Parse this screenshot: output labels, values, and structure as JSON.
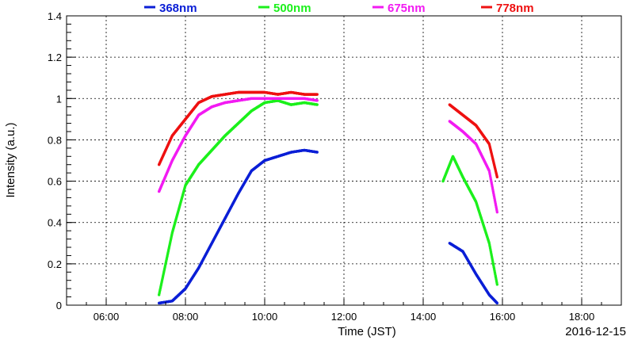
{
  "chart_data": {
    "type": "scatter",
    "title": "",
    "xlabel": "Time (JST)",
    "ylabel": "Intensity (a.u.)",
    "date_label": "2016-12-15",
    "xlim": [
      "05:00",
      "19:00"
    ],
    "ylim": [
      0,
      1.4
    ],
    "x_ticks": [
      "06:00",
      "08:00",
      "10:00",
      "12:00",
      "14:00",
      "16:00",
      "18:00"
    ],
    "y_ticks": [
      "0",
      "0.2",
      "0.4",
      "0.6",
      "0.8",
      "1",
      "1.2",
      "1.4"
    ],
    "grid": true,
    "legend_position": "top",
    "series": [
      {
        "name": "368nm",
        "color": "#0b1fd6",
        "points": [
          [
            "07:20",
            0.01
          ],
          [
            "07:40",
            0.02
          ],
          [
            "08:00",
            0.08
          ],
          [
            "08:20",
            0.18
          ],
          [
            "08:40",
            0.3
          ],
          [
            "09:00",
            0.42
          ],
          [
            "09:20",
            0.54
          ],
          [
            "09:40",
            0.65
          ],
          [
            "10:00",
            0.7
          ],
          [
            "10:20",
            0.72
          ],
          [
            "10:40",
            0.74
          ],
          [
            "11:00",
            0.75
          ],
          [
            "11:20",
            0.74
          ],
          [
            "14:40",
            0.3
          ],
          [
            "15:00",
            0.26
          ],
          [
            "15:20",
            0.15
          ],
          [
            "15:40",
            0.05
          ],
          [
            "15:52",
            0.01
          ]
        ]
      },
      {
        "name": "500nm",
        "color": "#1cf01c",
        "points": [
          [
            "07:20",
            0.05
          ],
          [
            "07:40",
            0.35
          ],
          [
            "08:00",
            0.58
          ],
          [
            "08:20",
            0.68
          ],
          [
            "08:40",
            0.75
          ],
          [
            "09:00",
            0.82
          ],
          [
            "09:20",
            0.88
          ],
          [
            "09:40",
            0.94
          ],
          [
            "10:00",
            0.98
          ],
          [
            "10:20",
            0.99
          ],
          [
            "10:40",
            0.97
          ],
          [
            "11:00",
            0.98
          ],
          [
            "11:20",
            0.97
          ],
          [
            "14:30",
            0.6
          ],
          [
            "14:45",
            0.72
          ],
          [
            "15:00",
            0.62
          ],
          [
            "15:20",
            0.5
          ],
          [
            "15:40",
            0.3
          ],
          [
            "15:52",
            0.1
          ]
        ]
      },
      {
        "name": "675nm",
        "color": "#f21bf2",
        "points": [
          [
            "07:20",
            0.55
          ],
          [
            "07:40",
            0.7
          ],
          [
            "08:00",
            0.82
          ],
          [
            "08:20",
            0.92
          ],
          [
            "08:40",
            0.96
          ],
          [
            "09:00",
            0.98
          ],
          [
            "09:20",
            0.99
          ],
          [
            "09:40",
            1.0
          ],
          [
            "10:00",
            1.0
          ],
          [
            "10:20",
            1.0
          ],
          [
            "10:40",
            1.0
          ],
          [
            "11:00",
            1.0
          ],
          [
            "11:20",
            0.99
          ],
          [
            "14:40",
            0.89
          ],
          [
            "15:00",
            0.84
          ],
          [
            "15:20",
            0.78
          ],
          [
            "15:40",
            0.65
          ],
          [
            "15:52",
            0.45
          ]
        ]
      },
      {
        "name": "778nm",
        "color": "#ee1111",
        "points": [
          [
            "07:20",
            0.68
          ],
          [
            "07:40",
            0.82
          ],
          [
            "08:00",
            0.9
          ],
          [
            "08:20",
            0.98
          ],
          [
            "08:40",
            1.01
          ],
          [
            "09:00",
            1.02
          ],
          [
            "09:20",
            1.03
          ],
          [
            "09:40",
            1.03
          ],
          [
            "10:00",
            1.03
          ],
          [
            "10:20",
            1.02
          ],
          [
            "10:40",
            1.03
          ],
          [
            "11:00",
            1.02
          ],
          [
            "11:20",
            1.02
          ],
          [
            "14:40",
            0.97
          ],
          [
            "15:00",
            0.92
          ],
          [
            "15:20",
            0.87
          ],
          [
            "15:40",
            0.78
          ],
          [
            "15:52",
            0.62
          ]
        ]
      }
    ]
  }
}
